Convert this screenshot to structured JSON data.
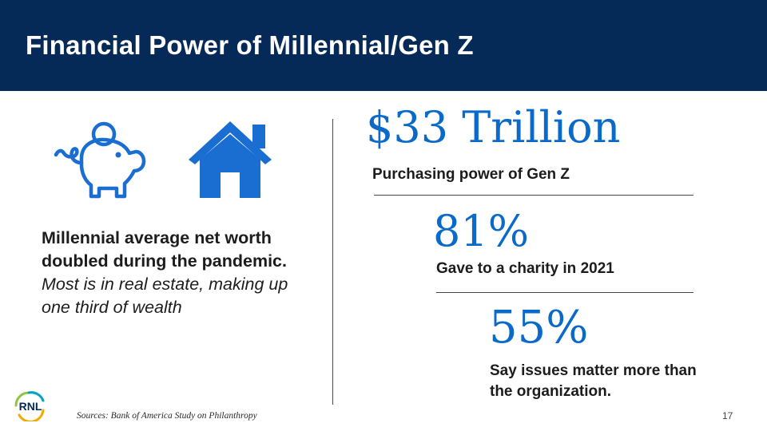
{
  "slide": {
    "title": "Financial Power of Millennial/Gen Z",
    "page_number": "17"
  },
  "left": {
    "icons": [
      "piggy-bank-icon",
      "house-icon"
    ],
    "bold_text": "Millennial average net worth doubled during the pandemic.",
    "italic_text": "Most is in real estate, making up one third of wealth"
  },
  "stats": [
    {
      "value": "$33 Trillion",
      "label": "Purchasing power of Gen Z"
    },
    {
      "value": "81%",
      "label": "Gave to a charity in 2021"
    },
    {
      "value": "55%",
      "label": "Say issues matter more than the organization."
    }
  ],
  "footer": {
    "source": "Sources: Bank of America Study on Philanthropy",
    "logo_text": "RNL"
  },
  "colors": {
    "header_bg": "#062a57",
    "accent_blue": "#0a6ac9",
    "icon_blue": "#1a6ed1"
  }
}
